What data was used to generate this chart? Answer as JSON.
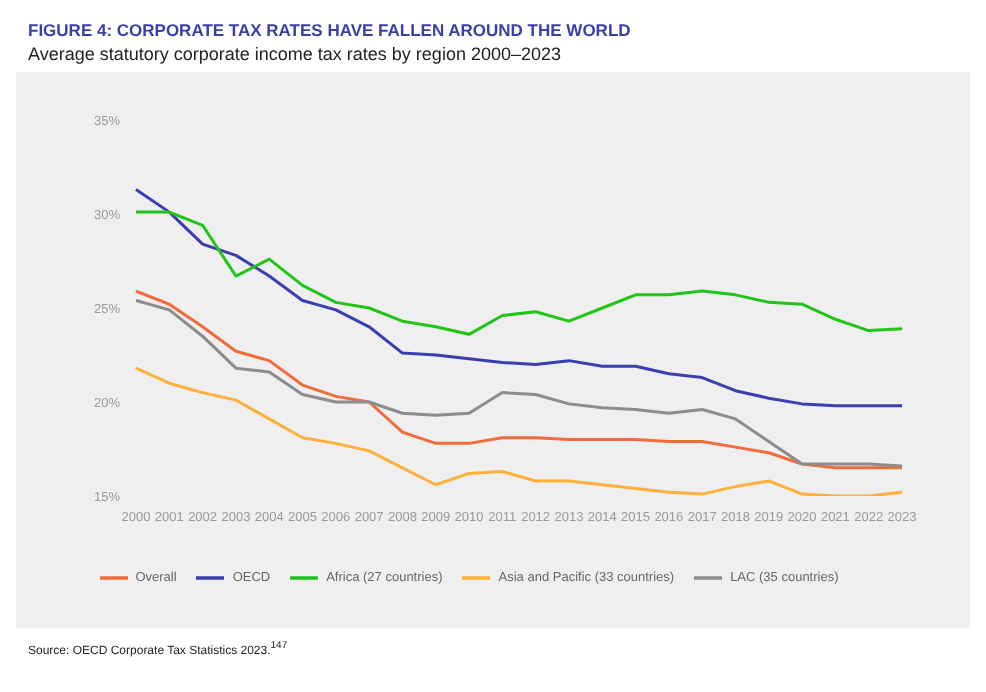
{
  "chart_data": {
    "type": "line",
    "title": "FIGURE 4: CORPORATE TAX RATES HAVE FALLEN AROUND THE WORLD",
    "subtitle": "Average statutory corporate income tax rates by region 2000–2023",
    "categories": [
      "2000",
      "2001",
      "2002",
      "2003",
      "2004",
      "2005",
      "2006",
      "2007",
      "2008",
      "2009",
      "2010",
      "2011",
      "2012",
      "2013",
      "2014",
      "2015",
      "2016",
      "2017",
      "2018",
      "2019",
      "2020",
      "2021",
      "2022",
      "2023"
    ],
    "series": [
      {
        "name": "Overall",
        "color": "#f26b3a",
        "values": [
          25.9,
          25.2,
          24.0,
          22.7,
          22.2,
          20.9,
          20.3,
          20.0,
          18.4,
          17.8,
          17.8,
          18.1,
          18.1,
          18.0,
          18.0,
          18.0,
          17.9,
          17.9,
          17.6,
          17.3,
          16.7,
          16.5,
          16.5,
          16.5
        ]
      },
      {
        "name": "OECD",
        "color": "#3a3fb0",
        "values": [
          31.3,
          30.1,
          28.4,
          27.8,
          26.7,
          25.4,
          24.9,
          24.0,
          22.6,
          22.5,
          22.3,
          22.1,
          22.0,
          22.2,
          21.9,
          21.9,
          21.5,
          21.3,
          20.6,
          20.2,
          19.9,
          19.8,
          19.8,
          19.8
        ]
      },
      {
        "name": "Africa (27 countries)",
        "color": "#22c41a",
        "values": [
          30.1,
          30.1,
          29.4,
          26.7,
          27.6,
          26.2,
          25.3,
          25.0,
          24.3,
          24.0,
          23.6,
          24.6,
          24.8,
          24.3,
          25.0,
          25.7,
          25.7,
          25.9,
          25.7,
          25.3,
          25.2,
          24.4,
          23.8,
          23.9
        ]
      },
      {
        "name": "Asia and Pacific (33 countries)",
        "color": "#ffb03b",
        "values": [
          21.8,
          21.0,
          20.5,
          20.1,
          19.1,
          18.1,
          17.8,
          17.4,
          16.5,
          15.6,
          16.2,
          16.3,
          15.8,
          15.8,
          15.6,
          15.4,
          15.2,
          15.1,
          15.5,
          15.8,
          15.1,
          15.0,
          15.0,
          15.2
        ]
      },
      {
        "name": "LAC (35 countries)",
        "color": "#8c8c8c",
        "values": [
          25.4,
          24.9,
          23.5,
          21.8,
          21.6,
          20.4,
          20.0,
          20.0,
          19.4,
          19.3,
          19.4,
          20.5,
          20.4,
          19.9,
          19.7,
          19.6,
          19.4,
          19.6,
          19.1,
          17.9,
          16.7,
          16.7,
          16.7,
          16.6
        ]
      }
    ],
    "ylim": [
      15,
      35
    ],
    "yticks": [
      {
        "value": 15,
        "label": "15%"
      },
      {
        "value": 20,
        "label": "20%"
      },
      {
        "value": 25,
        "label": "25%"
      },
      {
        "value": 30,
        "label": "30%"
      },
      {
        "value": 35,
        "label": "35%"
      }
    ],
    "grid": false,
    "legend": "bottom",
    "marker": "none",
    "line_style": "solid",
    "annotations": [
      "Source: OECD Corporate Tax Statistics 2023.$^{147}$"
    ]
  }
}
